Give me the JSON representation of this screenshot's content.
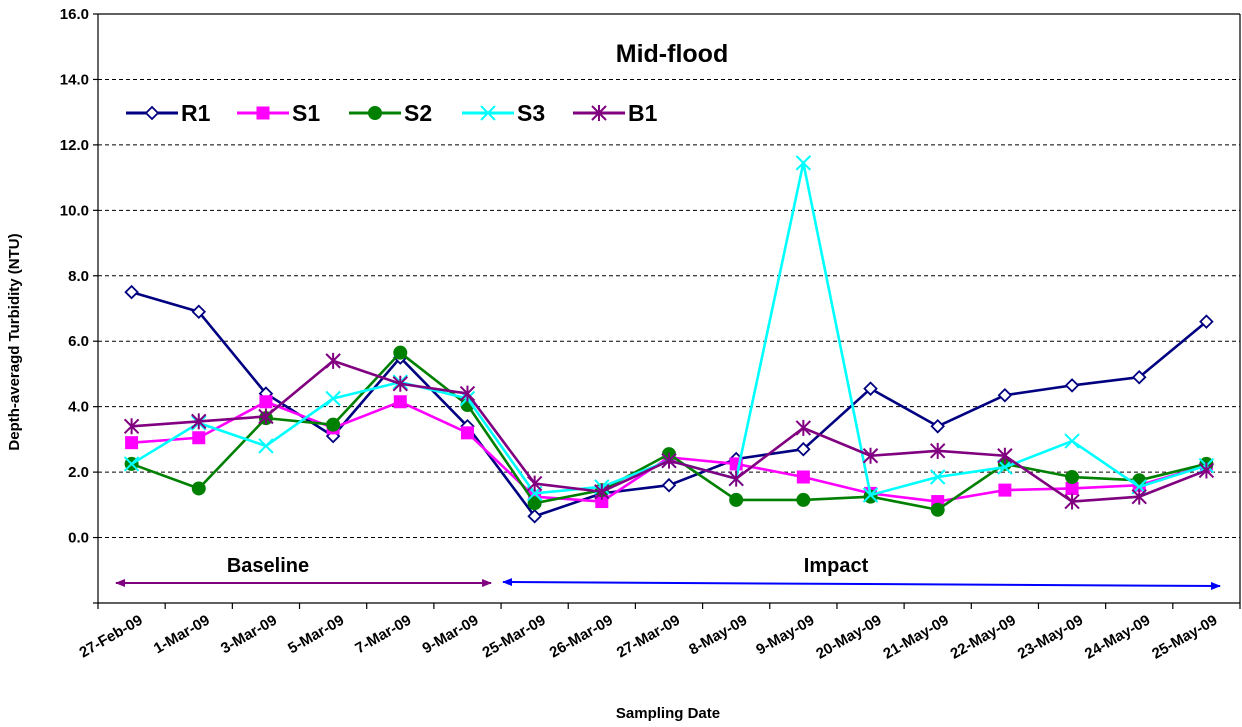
{
  "chart_data": {
    "type": "line",
    "title": "Mid-flood",
    "xlabel": "Sampling Date",
    "ylabel": "Depth-averagd Turbidity (NTU)",
    "ylim": [
      -2.0,
      16.0
    ],
    "y_ticks": [
      "0.0",
      "2.0",
      "4.0",
      "6.0",
      "8.0",
      "10.0",
      "12.0",
      "14.0",
      "16.0"
    ],
    "grid": "horizontal dashed",
    "legend": "top-left",
    "categories": [
      "27-Feb-09",
      "1-Mar-09",
      "3-Mar-09",
      "5-Mar-09",
      "7-Mar-09",
      "9-Mar-09",
      "25-Mar-09",
      "26-Mar-09",
      "27-Mar-09",
      "8-May-09",
      "9-May-09",
      "20-May-09",
      "21-May-09",
      "22-May-09",
      "23-May-09",
      "24-May-09",
      "25-May-09"
    ],
    "series": [
      {
        "name": "R1",
        "color": "#000080",
        "marker": "diamond-open",
        "values": [
          7.5,
          6.9,
          4.4,
          3.1,
          5.5,
          3.4,
          0.65,
          1.35,
          1.6,
          2.4,
          2.7,
          4.55,
          3.4,
          4.35,
          4.65,
          4.9,
          6.6
        ]
      },
      {
        "name": "S1",
        "color": "#FF00FF",
        "marker": "square",
        "values": [
          2.9,
          3.05,
          4.15,
          3.35,
          4.15,
          3.2,
          1.25,
          1.1,
          2.45,
          2.25,
          1.85,
          1.35,
          1.1,
          1.45,
          1.5,
          1.6,
          2.2
        ]
      },
      {
        "name": "S2",
        "color": "#008000",
        "marker": "circle",
        "values": [
          2.25,
          1.5,
          3.65,
          3.45,
          5.65,
          4.05,
          1.05,
          1.45,
          2.55,
          1.15,
          1.15,
          1.25,
          0.85,
          2.25,
          1.85,
          1.75,
          2.25
        ]
      },
      {
        "name": "S3",
        "color": "#00FFFF",
        "marker": "x",
        "values": [
          2.25,
          3.5,
          2.8,
          4.25,
          4.75,
          4.25,
          1.35,
          1.55,
          2.35,
          1.8,
          11.45,
          1.3,
          1.85,
          2.15,
          2.95,
          1.55,
          2.2
        ]
      },
      {
        "name": "B1",
        "color": "#800080",
        "marker": "asterisk",
        "values": [
          3.4,
          3.55,
          3.7,
          5.4,
          4.7,
          4.4,
          1.65,
          1.4,
          2.35,
          1.8,
          3.35,
          2.5,
          2.65,
          2.5,
          1.1,
          1.25,
          2.05
        ]
      }
    ],
    "annotations": [
      {
        "text": "Baseline",
        "color": "#800080",
        "from": "27-Feb-09",
        "to": "9-Mar-09"
      },
      {
        "text": "Impact",
        "color": "#0000FF",
        "from": "9-Mar-09",
        "to": "25-May-09"
      }
    ]
  }
}
